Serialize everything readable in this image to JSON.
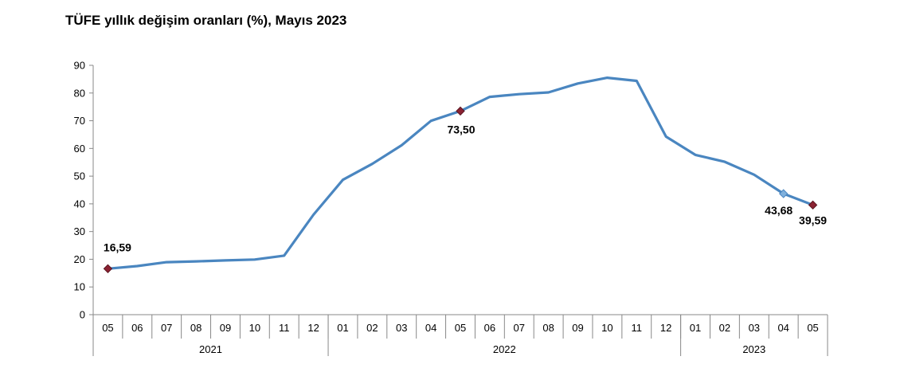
{
  "chart_data": {
    "type": "line",
    "title": "TÜFE yıllık değişim oranları (%), Mayıs 2023",
    "xlabel": "",
    "ylabel": "",
    "ylim": [
      0,
      90
    ],
    "yticks": [
      "0",
      "10",
      "20",
      "30",
      "40",
      "50",
      "60",
      "70",
      "80",
      "90"
    ],
    "grid": false,
    "legend": "none",
    "colors": {
      "line": "#4a86c0",
      "marker": "#8b2232"
    },
    "categories": [
      "05",
      "06",
      "07",
      "08",
      "09",
      "10",
      "11",
      "12",
      "01",
      "02",
      "03",
      "04",
      "05",
      "06",
      "07",
      "08",
      "09",
      "10",
      "11",
      "12",
      "01",
      "02",
      "03",
      "04",
      "05"
    ],
    "years": [
      {
        "label": "2021",
        "start": 0,
        "end": 7
      },
      {
        "label": "2022",
        "start": 8,
        "end": 19
      },
      {
        "label": "2023",
        "start": 20,
        "end": 24
      }
    ],
    "series": [
      {
        "values": [
          16.59,
          17.53,
          18.95,
          19.25,
          19.58,
          19.89,
          21.31,
          36.08,
          48.69,
          54.44,
          61.14,
          69.97,
          73.5,
          78.62,
          79.6,
          80.21,
          83.45,
          85.51,
          84.39,
          64.27,
          57.68,
          55.18,
          50.51,
          43.68,
          39.59
        ]
      }
    ],
    "annotations": [
      {
        "index": 0,
        "label": "16,59"
      },
      {
        "index": 12,
        "label": "73,50"
      },
      {
        "index": 23,
        "label": "43,68"
      },
      {
        "index": 24,
        "label": "39,59"
      }
    ]
  }
}
